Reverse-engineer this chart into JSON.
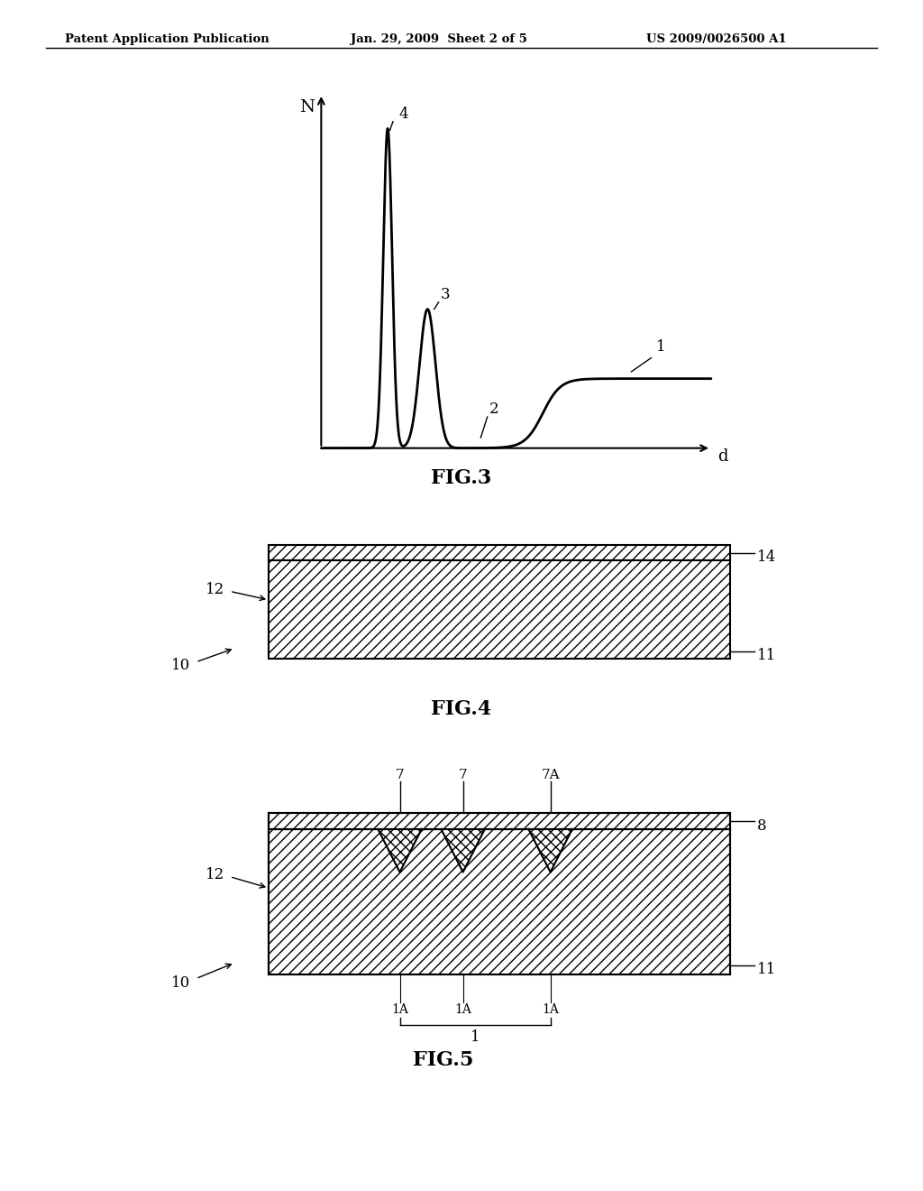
{
  "header_left": "Patent Application Publication",
  "header_mid": "Jan. 29, 2009  Sheet 2 of 5",
  "header_right": "US 2009/0026500 A1",
  "fig3_title": "FIG.3",
  "fig4_title": "FIG.4",
  "fig5_title": "FIG.5",
  "background_color": "#ffffff",
  "line_color": "#000000",
  "label_1": "1",
  "label_2": "2",
  "label_3": "3",
  "label_4": "4",
  "label_N": "N",
  "label_d": "d",
  "label_10a": "10",
  "label_11a": "11",
  "label_12a": "12",
  "label_14a": "14",
  "label_10b": "10",
  "label_11b": "11",
  "label_12b": "12",
  "label_7a": "7",
  "label_7b": "7",
  "label_7A": "7A",
  "label_8": "8",
  "label_1_b": "1"
}
